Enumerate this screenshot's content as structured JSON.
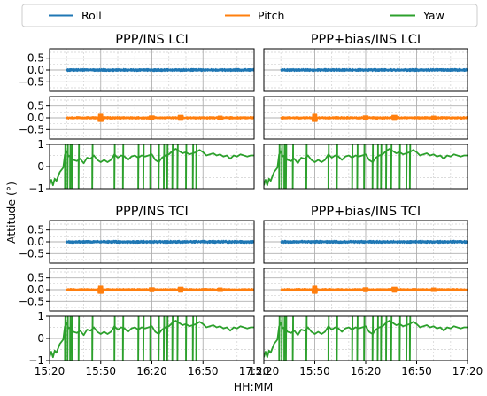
{
  "chart_data": {
    "type": "line",
    "ylabel": "Attitude (°)",
    "xlabel": "HH:MM",
    "x_ticks": [
      "15:20",
      "15:50",
      "16:20",
      "16:50",
      "17:20"
    ],
    "x_range_minutes": [
      0,
      120
    ],
    "legend": {
      "placement": "top",
      "entries": [
        {
          "name": "Roll",
          "color": "#1f77b4"
        },
        {
          "name": "Pitch",
          "color": "#ff7f0e"
        },
        {
          "name": "Yaw",
          "color": "#2ca02c"
        }
      ]
    },
    "grid": true,
    "groups": [
      {
        "titles": [
          "PPP/INS LCI",
          "PPP+bias/INS LCI"
        ]
      },
      {
        "titles": [
          "PPP/INS TCI",
          "PPP+bias/INS TCI"
        ]
      }
    ],
    "rows": [
      {
        "series": "Roll",
        "color": "#1f77b4",
        "ylim": [
          -0.9,
          0.9
        ],
        "yticks": [
          {
            "v": 0.5,
            "t": "0.5"
          },
          {
            "v": 0,
            "t": "0.0"
          },
          {
            "v": -0.5,
            "t": "−0.5"
          }
        ]
      },
      {
        "series": "Pitch",
        "color": "#ff7f0e",
        "ylim": [
          -0.9,
          0.9
        ],
        "yticks": [
          {
            "v": 0.5,
            "t": "0.5"
          },
          {
            "v": 0,
            "t": "0.0"
          },
          {
            "v": -0.5,
            "t": "−0.5"
          }
        ]
      },
      {
        "series": "Yaw",
        "color": "#2ca02c",
        "ylim": [
          -1,
          1
        ],
        "yticks": [
          {
            "v": 1,
            "t": "1"
          },
          {
            "v": 0,
            "t": "0"
          },
          {
            "v": -1,
            "t": "−1"
          }
        ]
      }
    ],
    "roll_values": {
      "mean": 0.0,
      "noise_amplitude": 0.06,
      "start_minute": 10
    },
    "pitch_values": {
      "mean": 0.0,
      "noise_amplitude": 0.05,
      "start_minute": 10,
      "bursts": [
        {
          "minute": 30,
          "amplitude": 0.15
        },
        {
          "minute": 60,
          "amplitude": 0.08
        },
        {
          "minute": 77,
          "amplitude": 0.1
        },
        {
          "minute": 100,
          "amplitude": 0.07
        }
      ]
    },
    "yaw_curve": [
      [
        0,
        -0.85
      ],
      [
        1,
        -0.6
      ],
      [
        2,
        -0.85
      ],
      [
        3,
        -0.55
      ],
      [
        4,
        -0.65
      ],
      [
        6,
        -0.25
      ],
      [
        8,
        -0.05
      ],
      [
        9,
        0.55
      ],
      [
        10,
        0.7
      ],
      [
        11,
        0.45
      ],
      [
        12,
        0.5
      ],
      [
        14,
        0.3
      ],
      [
        16,
        0.25
      ],
      [
        18,
        0.35
      ],
      [
        20,
        0.15
      ],
      [
        22,
        0.4
      ],
      [
        24,
        0.35
      ],
      [
        26,
        0.5
      ],
      [
        28,
        0.3
      ],
      [
        30,
        0.2
      ],
      [
        32,
        0.3
      ],
      [
        34,
        0.2
      ],
      [
        36,
        0.3
      ],
      [
        38,
        0.55
      ],
      [
        40,
        0.4
      ],
      [
        42,
        0.5
      ],
      [
        44,
        0.45
      ],
      [
        46,
        0.3
      ],
      [
        48,
        0.45
      ],
      [
        50,
        0.5
      ],
      [
        52,
        0.4
      ],
      [
        54,
        0.5
      ],
      [
        56,
        0.45
      ],
      [
        58,
        0.5
      ],
      [
        60,
        0.55
      ],
      [
        62,
        0.3
      ],
      [
        64,
        0.2
      ],
      [
        66,
        0.4
      ],
      [
        68,
        0.5
      ],
      [
        70,
        0.55
      ],
      [
        72,
        0.7
      ],
      [
        74,
        0.8
      ],
      [
        76,
        0.7
      ],
      [
        78,
        0.6
      ],
      [
        80,
        0.65
      ],
      [
        82,
        0.55
      ],
      [
        84,
        0.6
      ],
      [
        86,
        0.65
      ],
      [
        88,
        0.75
      ],
      [
        90,
        0.65
      ],
      [
        92,
        0.5
      ],
      [
        94,
        0.55
      ],
      [
        96,
        0.6
      ],
      [
        98,
        0.5
      ],
      [
        100,
        0.55
      ],
      [
        102,
        0.45
      ],
      [
        104,
        0.5
      ],
      [
        106,
        0.35
      ],
      [
        108,
        0.5
      ],
      [
        110,
        0.45
      ],
      [
        112,
        0.55
      ],
      [
        114,
        0.5
      ],
      [
        116,
        0.45
      ],
      [
        118,
        0.5
      ],
      [
        120,
        0.5
      ]
    ],
    "yaw_spikes_minute": [
      9,
      10.5,
      12,
      13,
      17,
      25,
      38,
      43,
      52,
      55,
      59,
      64,
      67,
      69,
      72,
      75,
      80,
      84,
      86
    ]
  }
}
